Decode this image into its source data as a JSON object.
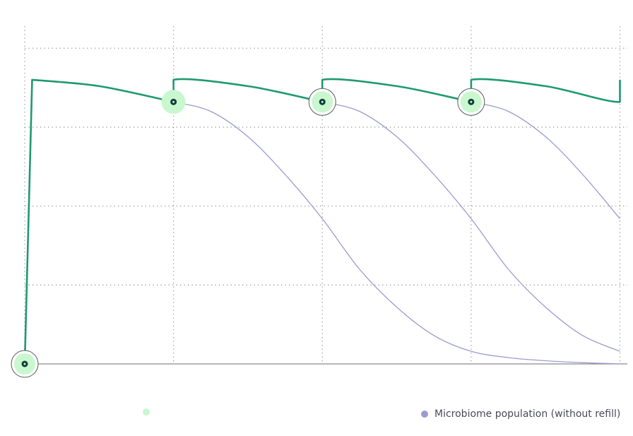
{
  "chart_data": {
    "type": "line",
    "title": "",
    "xlabel": "",
    "ylabel": "",
    "grid": true,
    "x_ticks": [
      0,
      1,
      2,
      3,
      4
    ],
    "y_ticks": [
      0,
      25,
      50,
      75,
      100
    ],
    "xlim": [
      0,
      4.05
    ],
    "ylim": [
      0,
      107
    ],
    "refill_points": [
      {
        "x": 0,
        "y": 0,
        "style": "ring"
      },
      {
        "x": 1,
        "y": 83,
        "style": "halo"
      },
      {
        "x": 2,
        "y": 83,
        "style": "ring"
      },
      {
        "x": 3,
        "y": 83,
        "style": "ring"
      }
    ],
    "series": [
      {
        "name": "",
        "color": "#1f9a6e",
        "segments": [
          [
            [
              0,
              0
            ],
            [
              0.05,
              90
            ],
            [
              0.05,
              90
            ],
            [
              0.5,
              88
            ],
            [
              1.0,
              83
            ]
          ],
          [
            [
              1.0,
              83
            ],
            [
              1.0,
              90
            ],
            [
              1.5,
              88
            ],
            [
              2.0,
              83
            ]
          ],
          [
            [
              2.0,
              83
            ],
            [
              2.0,
              90
            ],
            [
              2.5,
              88
            ],
            [
              3.0,
              83
            ]
          ],
          [
            [
              3.0,
              83
            ],
            [
              3.0,
              90
            ],
            [
              3.5,
              88
            ],
            [
              4.0,
              83
            ],
            [
              4.0,
              90
            ]
          ]
        ]
      },
      {
        "name": "Microbiome population (without refill)",
        "color": "#9b9bd0",
        "segments": [
          [
            [
              1.0,
              83
            ],
            [
              1.25,
              80
            ],
            [
              1.5,
              72
            ],
            [
              1.75,
              60
            ],
            [
              2.0,
              46
            ],
            [
              2.25,
              30
            ],
            [
              2.5,
              18
            ],
            [
              2.75,
              9
            ],
            [
              3.0,
              4
            ],
            [
              3.25,
              2
            ],
            [
              3.5,
              1
            ],
            [
              3.75,
              0.4
            ],
            [
              4.0,
              0
            ]
          ],
          [
            [
              2.0,
              83
            ],
            [
              2.25,
              80
            ],
            [
              2.5,
              72
            ],
            [
              2.75,
              60
            ],
            [
              3.0,
              46
            ],
            [
              3.25,
              30
            ],
            [
              3.5,
              18
            ],
            [
              3.75,
              9
            ],
            [
              4.0,
              4
            ]
          ],
          [
            [
              3.0,
              83
            ],
            [
              3.25,
              80
            ],
            [
              3.5,
              72
            ],
            [
              3.75,
              60
            ],
            [
              4.0,
              46
            ]
          ]
        ]
      }
    ]
  },
  "legend": {
    "items": [
      {
        "label": "",
        "color": "#c9f7cf"
      },
      {
        "label": "Microbiome population (without refill)",
        "color": "#9b9bd0"
      }
    ]
  }
}
